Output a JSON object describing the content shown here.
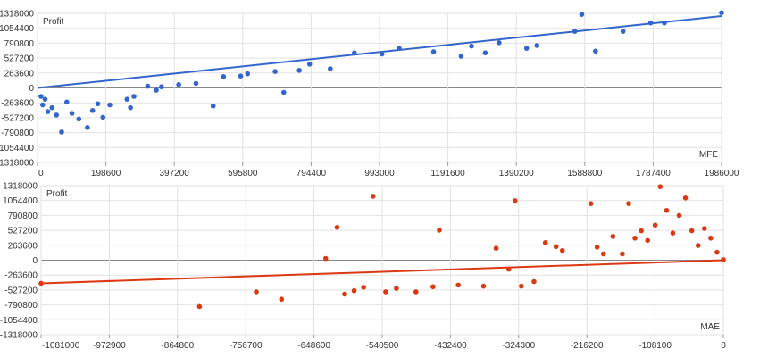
{
  "chart_data": [
    {
      "type": "scatter",
      "ylabel": "Profit",
      "xlabel": "MFE",
      "color": "#3366cc",
      "xlim": [
        0,
        1986000
      ],
      "ylim": [
        -1318000,
        1318000
      ],
      "x_ticks": [
        "0",
        "198600",
        "397200",
        "595800",
        "794400",
        "993000",
        "1191600",
        "1390200",
        "1588800",
        "1787400",
        "1986000"
      ],
      "y_ticks": [
        "1318000",
        "1054400",
        "790800",
        "527200",
        "263600",
        "0",
        "-263600",
        "-527200",
        "-790800",
        "-1054400",
        "-1318000"
      ],
      "trendline": [
        [
          0,
          0
        ],
        [
          1986000,
          1270000
        ]
      ],
      "points": [
        [
          10000,
          -150000
        ],
        [
          15000,
          -300000
        ],
        [
          22000,
          -200000
        ],
        [
          30000,
          -420000
        ],
        [
          42000,
          -350000
        ],
        [
          55000,
          -480000
        ],
        [
          70000,
          -780000
        ],
        [
          85000,
          -250000
        ],
        [
          100000,
          -450000
        ],
        [
          120000,
          -550000
        ],
        [
          145000,
          -700000
        ],
        [
          160000,
          -400000
        ],
        [
          175000,
          -280000
        ],
        [
          190000,
          -520000
        ],
        [
          210000,
          -300000
        ],
        [
          260000,
          -200000
        ],
        [
          270000,
          -350000
        ],
        [
          280000,
          -150000
        ],
        [
          320000,
          30000
        ],
        [
          345000,
          -40000
        ],
        [
          360000,
          20000
        ],
        [
          410000,
          60000
        ],
        [
          460000,
          80000
        ],
        [
          510000,
          -320000
        ],
        [
          540000,
          200000
        ],
        [
          590000,
          210000
        ],
        [
          610000,
          250000
        ],
        [
          690000,
          290000
        ],
        [
          715000,
          -80000
        ],
        [
          760000,
          310000
        ],
        [
          790000,
          420000
        ],
        [
          850000,
          340000
        ],
        [
          920000,
          620000
        ],
        [
          1000000,
          600000
        ],
        [
          1050000,
          700000
        ],
        [
          1150000,
          640000
        ],
        [
          1230000,
          560000
        ],
        [
          1260000,
          740000
        ],
        [
          1300000,
          620000
        ],
        [
          1340000,
          800000
        ],
        [
          1420000,
          700000
        ],
        [
          1450000,
          750000
        ],
        [
          1560000,
          1000000
        ],
        [
          1580000,
          1300000
        ],
        [
          1620000,
          650000
        ],
        [
          1700000,
          1000000
        ],
        [
          1780000,
          1150000
        ],
        [
          1820000,
          1150000
        ],
        [
          1986000,
          1330000
        ]
      ]
    },
    {
      "type": "scatter",
      "ylabel": "Profit",
      "xlabel": "MAE",
      "color": "#dc3912",
      "xlim": [
        -1081000,
        0
      ],
      "ylim": [
        -1318000,
        1318000
      ],
      "x_ticks": [
        "-1081000",
        "-972900",
        "-864800",
        "-756700",
        "-648600",
        "-540500",
        "-432400",
        "-324300",
        "-216200",
        "-108100",
        "0"
      ],
      "y_ticks": [
        "1318000",
        "1054400",
        "790800",
        "527200",
        "263600",
        "0",
        "-263600",
        "-527200",
        "-790800",
        "-1054400",
        "-1318000"
      ],
      "trendline": [
        [
          -1081000,
          -410000
        ],
        [
          0,
          0
        ]
      ],
      "points": [
        [
          -1081000,
          -410000
        ],
        [
          -830000,
          -820000
        ],
        [
          -740000,
          -560000
        ],
        [
          -700000,
          -690000
        ],
        [
          -630000,
          30000
        ],
        [
          -612000,
          580000
        ],
        [
          -600000,
          -600000
        ],
        [
          -585000,
          -540000
        ],
        [
          -570000,
          -480000
        ],
        [
          -555000,
          1130000
        ],
        [
          -535000,
          -560000
        ],
        [
          -518000,
          -500000
        ],
        [
          -487000,
          -560000
        ],
        [
          -460000,
          -470000
        ],
        [
          -450000,
          530000
        ],
        [
          -420000,
          -440000
        ],
        [
          -380000,
          -460000
        ],
        [
          -360000,
          210000
        ],
        [
          -340000,
          -160000
        ],
        [
          -330000,
          1050000
        ],
        [
          -320000,
          -460000
        ],
        [
          -300000,
          -380000
        ],
        [
          -282000,
          310000
        ],
        [
          -265000,
          240000
        ],
        [
          -255000,
          170000
        ],
        [
          -210000,
          1000000
        ],
        [
          -200000,
          230000
        ],
        [
          -190000,
          110000
        ],
        [
          -175000,
          420000
        ],
        [
          -160000,
          110000
        ],
        [
          -150000,
          1000000
        ],
        [
          -140000,
          390000
        ],
        [
          -130000,
          520000
        ],
        [
          -120000,
          350000
        ],
        [
          -108000,
          620000
        ],
        [
          -100000,
          1300000
        ],
        [
          -90000,
          880000
        ],
        [
          -80000,
          480000
        ],
        [
          -70000,
          790000
        ],
        [
          -60000,
          1100000
        ],
        [
          -50000,
          520000
        ],
        [
          -40000,
          260000
        ],
        [
          -30000,
          560000
        ],
        [
          -20000,
          390000
        ],
        [
          -10000,
          140000
        ],
        [
          0,
          10000
        ]
      ]
    }
  ]
}
